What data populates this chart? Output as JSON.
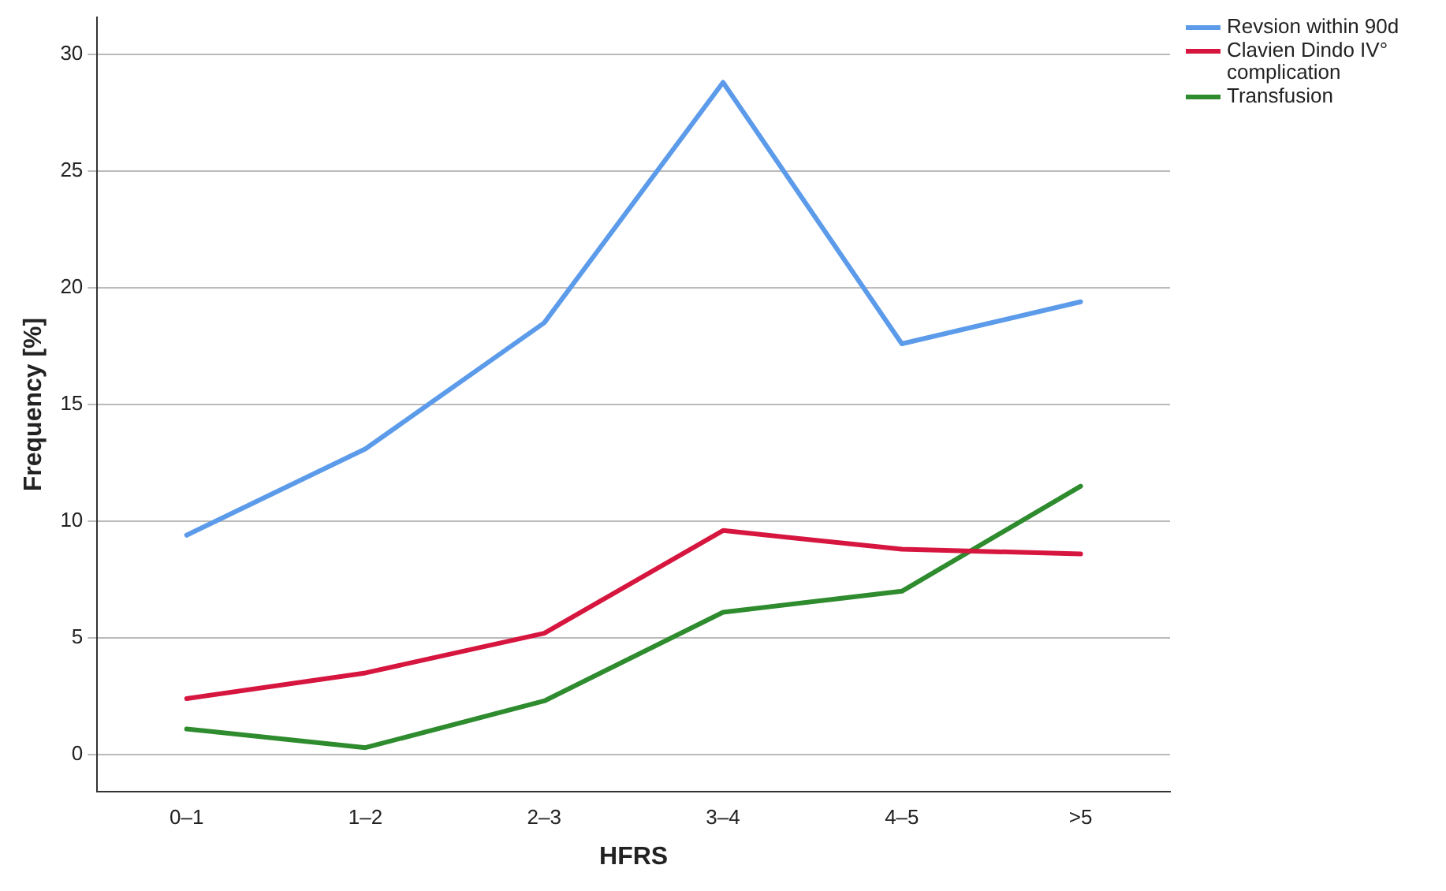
{
  "chart_data": {
    "type": "line",
    "xlabel": "HFRS",
    "ylabel": "Frequency [%]",
    "categories": [
      "0–1",
      "1–2",
      "2–3",
      "3–4",
      "4–5",
      ">5"
    ],
    "series": [
      {
        "name": "Revsion within 90d",
        "color": "#5b9bea",
        "values": [
          9.4,
          13.1,
          18.5,
          28.8,
          17.6,
          19.4
        ]
      },
      {
        "name": "Clavien Dindo IV° complication",
        "color": "#d6163f",
        "values": [
          2.4,
          3.5,
          5.2,
          9.6,
          8.8,
          8.6
        ]
      },
      {
        "name": "Transfusion",
        "color": "#2e8b2e",
        "values": [
          1.1,
          0.3,
          2.3,
          6.1,
          7.0,
          11.5
        ]
      }
    ],
    "ylim": [
      -1.6,
      31.6
    ],
    "yticks": [
      0,
      5,
      10,
      15,
      20,
      25,
      30
    ],
    "grid": "y",
    "legend": "top right",
    "marker": "none",
    "line_style": "solid"
  }
}
